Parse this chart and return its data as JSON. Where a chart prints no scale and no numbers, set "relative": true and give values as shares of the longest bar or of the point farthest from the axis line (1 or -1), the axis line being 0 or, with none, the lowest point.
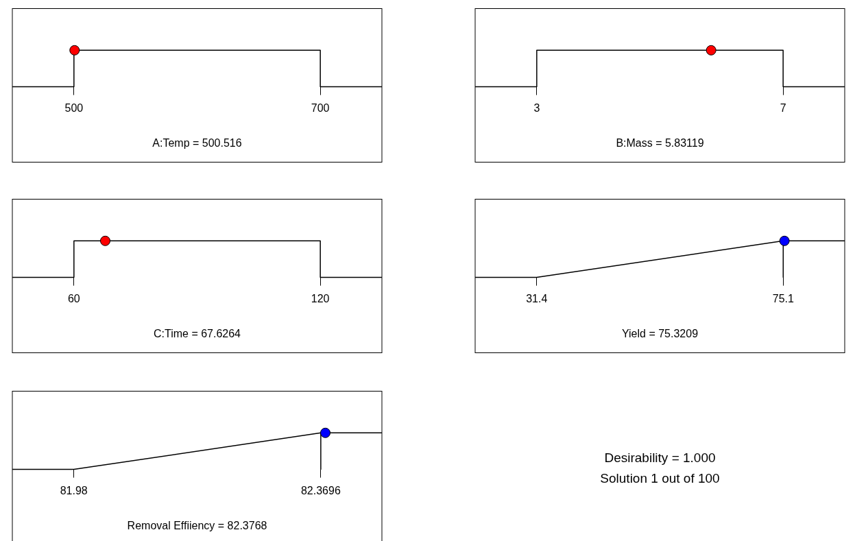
{
  "chart_data": [
    {
      "type": "line",
      "relative": true,
      "xlim": [
        450,
        750
      ],
      "xticks": [
        500,
        700
      ],
      "xlabel": "A:Temp = 500.516",
      "series": [
        {
          "type": "line",
          "color": "#000000",
          "marker": "none",
          "x": [
            450,
            500,
            500,
            700,
            700,
            750
          ],
          "values": [
            0,
            0,
            1,
            1,
            0,
            0
          ]
        },
        {
          "type": "scatter",
          "color": "#ff0000",
          "marker": "circle",
          "x": [
            500.516
          ],
          "values": [
            1
          ]
        }
      ]
    },
    {
      "type": "line",
      "relative": true,
      "xlim": [
        2,
        8
      ],
      "xticks": [
        3,
        7
      ],
      "xlabel": "B:Mass = 5.83119",
      "series": [
        {
          "type": "line",
          "color": "#000000",
          "marker": "none",
          "x": [
            2,
            3,
            3,
            7,
            7,
            8
          ],
          "values": [
            0,
            0,
            1,
            1,
            0,
            0
          ]
        },
        {
          "type": "scatter",
          "color": "#ff0000",
          "marker": "circle",
          "x": [
            5.83119
          ],
          "values": [
            1
          ]
        }
      ]
    },
    {
      "type": "line",
      "relative": true,
      "xlim": [
        45,
        135
      ],
      "xticks": [
        60,
        120
      ],
      "xlabel": "C:Time = 67.6264",
      "series": [
        {
          "type": "line",
          "color": "#000000",
          "marker": "none",
          "x": [
            45,
            60,
            60,
            120,
            120,
            135
          ],
          "values": [
            0,
            0,
            1,
            1,
            0,
            0
          ]
        },
        {
          "type": "scatter",
          "color": "#ff0000",
          "marker": "circle",
          "x": [
            67.6264
          ],
          "values": [
            1
          ]
        }
      ]
    },
    {
      "type": "line",
      "relative": true,
      "xlim": [
        20.5,
        86
      ],
      "xticks": [
        31.4,
        75.1
      ],
      "xlabel": "Yield = 75.3209",
      "series": [
        {
          "type": "line",
          "color": "#000000",
          "marker": "none",
          "x": [
            20.5,
            31.4,
            75.1,
            75.1,
            75.1,
            86
          ],
          "values": [
            0,
            0,
            1,
            0,
            1,
            1
          ]
        },
        {
          "type": "scatter",
          "color": "#0000ff",
          "marker": "circle",
          "x": [
            75.3209
          ],
          "values": [
            1
          ]
        }
      ]
    },
    {
      "type": "line",
      "relative": true,
      "xlim": [
        81.883,
        82.466
      ],
      "xticks": [
        81.98,
        82.3696
      ],
      "xlabel": "Removal Effiiency = 82.3768",
      "series": [
        {
          "type": "line",
          "color": "#000000",
          "marker": "none",
          "x": [
            81.883,
            81.98,
            82.3696,
            82.3696,
            82.3696,
            82.466
          ],
          "values": [
            0,
            0,
            1,
            0,
            1,
            1
          ]
        },
        {
          "type": "scatter",
          "color": "#0000ff",
          "marker": "circle",
          "x": [
            82.3768
          ],
          "values": [
            1
          ]
        }
      ]
    },
    {
      "type": "other",
      "annotations": [
        "Desirability = 1.000",
        "Solution 1 out of 100"
      ]
    }
  ]
}
